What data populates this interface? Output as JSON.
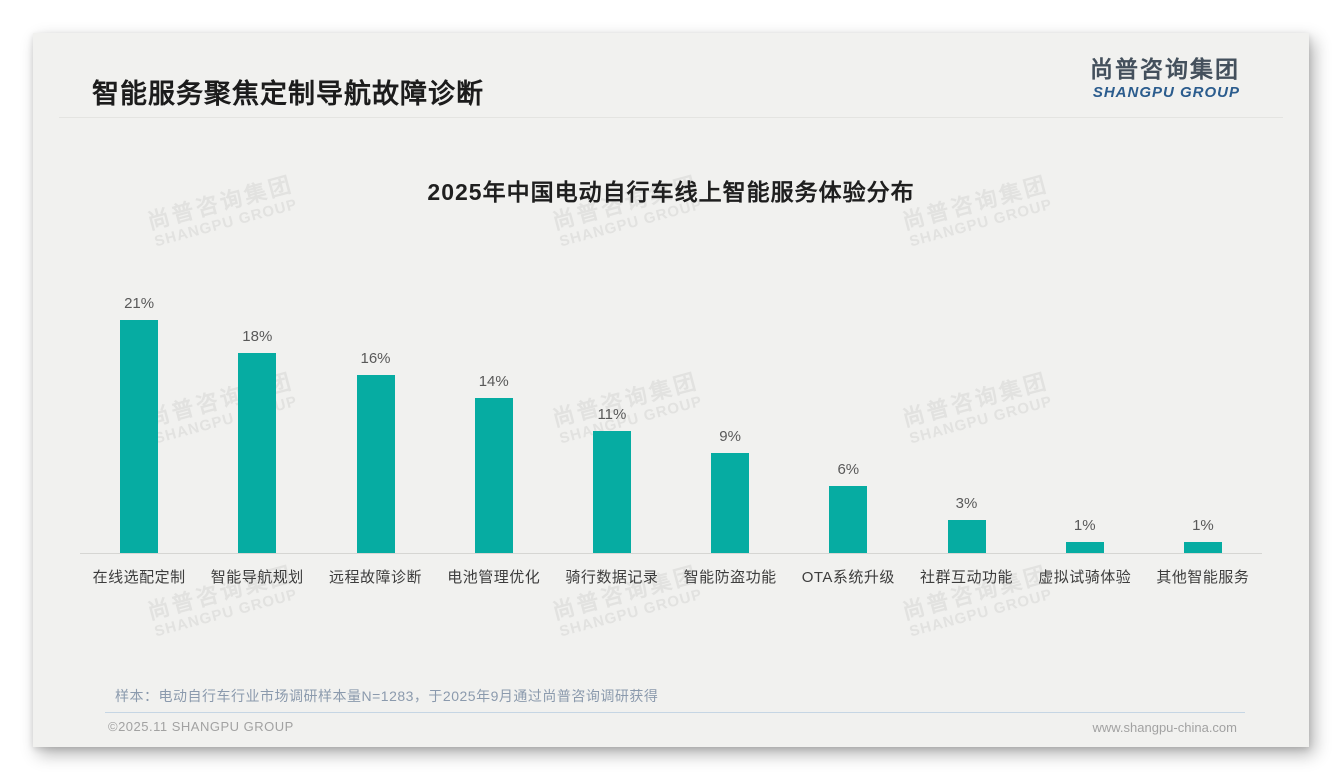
{
  "page": {
    "header": {
      "title": "智能服务聚焦定制导航故障诊断"
    },
    "logo": {
      "cn": "尚普咨询集团",
      "en": "SHANGPU GROUP"
    },
    "watermark": {
      "cn": "尚普咨询集团",
      "en": "SHANGPU GROUP"
    },
    "footer": {
      "note": "样本：电动自行车行业市场调研样本量N=1283，于2025年9月通过尚普咨询调研获得",
      "copyright": "©2025.11 SHANGPU GROUP",
      "website": "www.shangpu-china.com"
    }
  },
  "chart_data": {
    "type": "bar",
    "title": "2025年中国电动自行车线上智能服务体验分布",
    "categories": [
      "在线选配定制",
      "智能导航规划",
      "远程故障诊断",
      "电池管理优化",
      "骑行数据记录",
      "智能防盗功能",
      "OTA系统升级",
      "社群互动功能",
      "虚拟试骑体验",
      "其他智能服务"
    ],
    "values": [
      21,
      18,
      16,
      14,
      11,
      9,
      6,
      3,
      1,
      1
    ],
    "value_labels": [
      "21%",
      "18%",
      "16%",
      "14%",
      "11%",
      "9%",
      "6%",
      "3%",
      "1%",
      "1%"
    ],
    "bar_color": "#06aca2",
    "xlabel": "",
    "ylabel": "",
    "ylim": [
      0,
      23
    ],
    "grid": false,
    "legend": false,
    "value_label_position": "above-bar"
  }
}
